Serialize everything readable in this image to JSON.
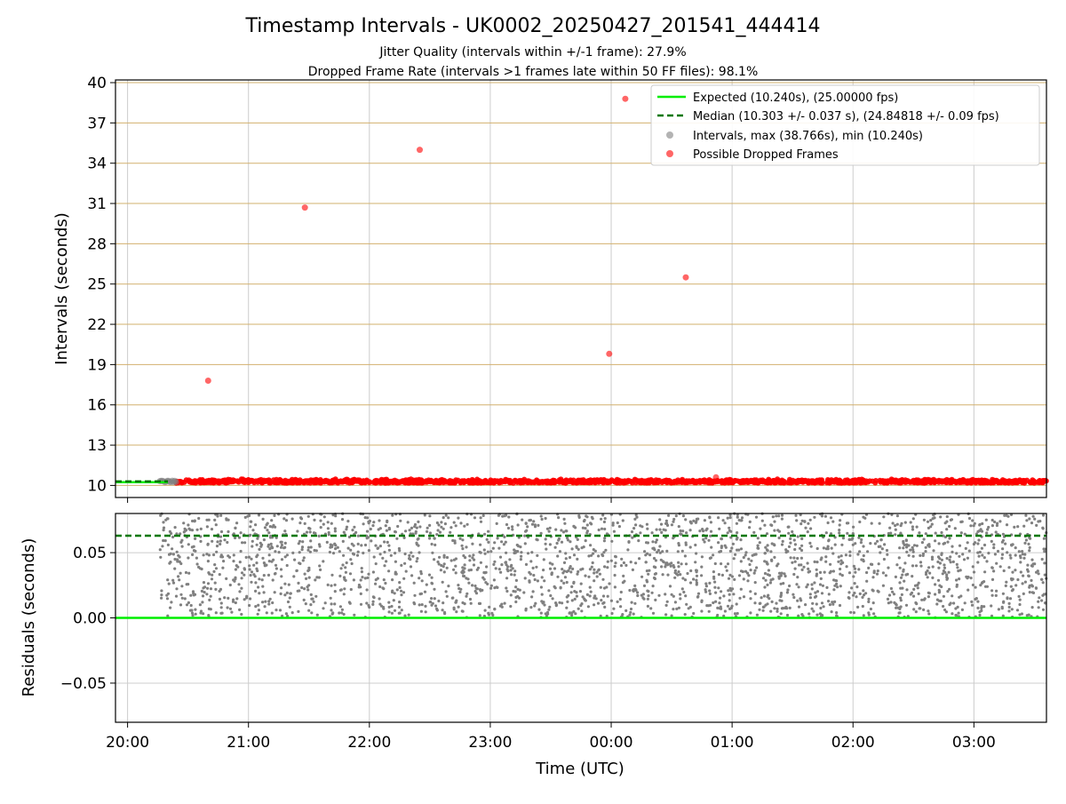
{
  "figure": {
    "title": "Timestamp Intervals - UK0002_20250427_201541_444414",
    "subtitle_1": "Jitter Quality (intervals within +/-1 frame): 27.9%",
    "subtitle_2": "Dropped Frame Rate (intervals >1 frames late within 50 FF files): 98.1%"
  },
  "colors": {
    "expected": "#00ee00",
    "median": "#007700",
    "dropped": "#ff0000",
    "intervals": "#808080",
    "hgrid": "#d2b06e",
    "vgrid": "#cccccc"
  },
  "chart_data": [
    {
      "type": "scatter",
      "name": "top",
      "xlabel": "",
      "ylabel": "Intervals (seconds)",
      "ylim": [
        9.1,
        40.2
      ],
      "xlim": [
        "19:54",
        "03:36"
      ],
      "y_ticks": [
        10,
        13,
        16,
        19,
        22,
        25,
        28,
        31,
        34,
        37,
        40
      ],
      "y_tick_labels": [
        "10",
        "13",
        "16",
        "19",
        "22",
        "25",
        "28",
        "31",
        "34",
        "37",
        "40"
      ],
      "x_ticks": [
        "20:00",
        "21:00",
        "22:00",
        "23:00",
        "00:00",
        "01:00",
        "02:00",
        "03:00"
      ],
      "grid": "on",
      "legend_position": "top-right",
      "legend": [
        {
          "label": "Expected (10.240s), (25.00000 fps)",
          "kind": "line"
        },
        {
          "label": "Median (10.303 +/- 0.037 s), (24.84818 +/- 0.09 fps)",
          "kind": "dashed"
        },
        {
          "label": "Intervals, max (38.766s), min (10.240s)",
          "kind": "marker-gray"
        },
        {
          "label": "Possible Dropped Frames",
          "kind": "marker-red"
        }
      ],
      "expected_line": 10.24,
      "median_line": 10.303,
      "series": [
        {
          "name": "Possible Dropped Frames",
          "points": [
            {
              "x": "20:40",
              "y": 17.8
            },
            {
              "x": "21:28",
              "y": 30.7
            },
            {
              "x": "22:25",
              "y": 35.0
            },
            {
              "x": "23:59",
              "y": 19.8
            },
            {
              "x": "00:07",
              "y": 38.8
            },
            {
              "x": "00:37",
              "y": 25.5
            },
            {
              "x": "00:52",
              "y": 10.6
            }
          ],
          "band": {
            "x_start": "20:24",
            "x_end": "03:36",
            "y_min": 10.18,
            "y_max": 10.48
          }
        },
        {
          "name": "Intervals",
          "band": {
            "x_start": "20:16",
            "x_end": "20:24",
            "y_min": 10.24,
            "y_max": 10.36
          }
        }
      ]
    },
    {
      "type": "scatter",
      "name": "bottom",
      "xlabel": "Time (UTC)",
      "ylabel": "Residuals (seconds)",
      "ylim": [
        -0.08,
        0.08
      ],
      "xlim": [
        "19:54",
        "03:36"
      ],
      "y_ticks": [
        -0.05,
        0.0,
        0.05
      ],
      "y_tick_labels": [
        "−0.05",
        "0.00",
        "0.05"
      ],
      "x_ticks": [
        "20:00",
        "21:00",
        "22:00",
        "23:00",
        "00:00",
        "01:00",
        "02:00",
        "03:00"
      ],
      "x_tick_labels": [
        "20:00",
        "21:00",
        "22:00",
        "23:00",
        "00:00",
        "01:00",
        "02:00",
        "03:00"
      ],
      "grid": "on",
      "expected_line": 0.0,
      "median_line": 0.063,
      "series": [
        {
          "name": "Residuals",
          "points_summary": {
            "count": 2500,
            "x_start": "20:16",
            "x_end": "03:36",
            "y_min": 0.0,
            "y_max": 0.08
          }
        }
      ]
    }
  ]
}
